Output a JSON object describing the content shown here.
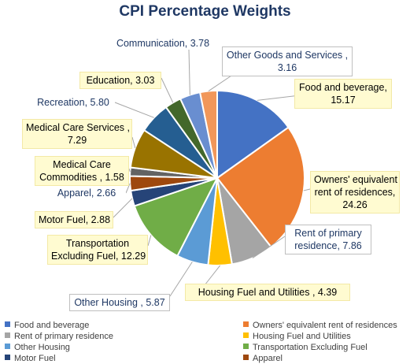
{
  "chart_data": {
    "type": "pie",
    "title": "CPI Percentage Weights",
    "slices": [
      {
        "label": "Food and beverage",
        "value": 15.17,
        "color": "#4472c4",
        "callout": "Food and beverage,\n15.17"
      },
      {
        "label": "Owners' equivalent rent of residences",
        "value": 24.26,
        "color": "#ed7d31",
        "callout": "Owners' equivalent\nrent of residences,\n24.26"
      },
      {
        "label": "Rent of primary residence",
        "value": 7.86,
        "color": "#a5a5a5",
        "callout": "Rent of primary\nresidence, 7.86"
      },
      {
        "label": "Housing Fuel and Utilities",
        "value": 4.39,
        "color": "#ffc000",
        "callout": "Housing Fuel and Utilities , 4.39"
      },
      {
        "label": "Other Housing",
        "value": 5.87,
        "color": "#5b9bd5",
        "callout": "Other Housing , 5.87"
      },
      {
        "label": "Transportation Excluding Fuel",
        "value": 12.29,
        "color": "#70ad47",
        "callout": "Transportation\nExcluding Fuel, 12.29"
      },
      {
        "label": "Motor Fuel",
        "value": 2.88,
        "color": "#264478",
        "callout": "Motor Fuel, 2.88"
      },
      {
        "label": "Apparel",
        "value": 2.66,
        "color": "#9e480e",
        "callout": "Apparel, 2.66"
      },
      {
        "label": "Medical Care Commodities",
        "value": 1.58,
        "color": "#636363",
        "callout": "Medical Care\nCommodities , 1.58"
      },
      {
        "label": "Medical Care Services",
        "value": 7.29,
        "color": "#997300",
        "callout": "Medical Care Services ,\n7.29"
      },
      {
        "label": "Recreation",
        "value": 5.8,
        "color": "#255e91",
        "callout": "Recreation, 5.80"
      },
      {
        "label": "Education",
        "value": 3.03,
        "color": "#43682b",
        "callout": "Education, 3.03"
      },
      {
        "label": "Communication",
        "value": 3.78,
        "color": "#698ed0",
        "callout": "Communication, 3.78"
      },
      {
        "label": "Other Goods and Services",
        "value": 3.16,
        "color": "#f1975a",
        "callout": "Other Goods and Services ,\n3.16"
      }
    ],
    "legend": [
      "Food and beverage",
      "Owners' equivalent rent of residences",
      "Rent of primary residence",
      "Housing Fuel and Utilities",
      "Other Housing",
      "Transportation Excluding Fuel",
      "Motor Fuel",
      "Apparel"
    ],
    "legend_position": "bottom"
  }
}
